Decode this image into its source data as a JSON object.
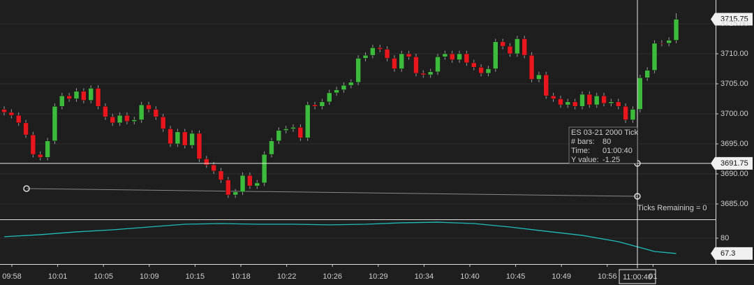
{
  "chart_data": {
    "type": "candlestick",
    "up_color": "#3dbb3d",
    "down_color": "#e8171d",
    "open": [
      3700.75,
      3700.25,
      3699.75,
      3698.5,
      3696.5,
      3693.25,
      3692.75,
      3695.5,
      3701.25,
      3703,
      3702.5,
      3703.75,
      3702.25,
      3704.25,
      3701.25,
      3699.5,
      3698.5,
      3699.75,
      3698.75,
      3699,
      3701.5,
      3700.75,
      3699.5,
      3697.5,
      3695,
      3697,
      3694.75,
      3696.75,
      3692.5,
      3691.5,
      3690.5,
      3689,
      3686.5,
      3687,
      3689.75,
      3688,
      3688.5,
      3693.25,
      3695.5,
      3697.25,
      3697.5,
      3697.75,
      3696,
      3701.5,
      3701.25,
      3702,
      3703.5,
      3704,
      3704.75,
      3705.25,
      3709.25,
      3709.75,
      3711,
      3710.75,
      3709.25,
      3707.5,
      3710,
      3709.5,
      3706.75,
      3706.5,
      3707,
      3709.5,
      3710,
      3709,
      3710,
      3708.5,
      3707.75,
      3706.75,
      3707.5,
      3712,
      3711.25,
      3710,
      3712.5,
      3709.75,
      3705.75,
      3706.5,
      3703,
      3702.5,
      3701.5,
      3702,
      3701.25,
      3703.25,
      3701.5,
      3703,
      3701.75,
      3702,
      3701.25,
      3699,
      3700.75,
      3706,
      3707.25,
      3711.75,
      3711.75,
      3712.25
    ],
    "high": [
      3701.25,
      3700.75,
      3700.25,
      3699,
      3697,
      3693.75,
      3696,
      3701.75,
      3703.5,
      3703.5,
      3704.25,
      3704.25,
      3704.75,
      3704.75,
      3701.75,
      3700,
      3700.25,
      3700.25,
      3699.5,
      3702,
      3702,
      3701.25,
      3700,
      3698,
      3697.5,
      3697.5,
      3697.25,
      3697.25,
      3693,
      3692,
      3691,
      3689.5,
      3687.5,
      3690.25,
      3690.25,
      3689,
      3693.75,
      3696,
      3697.75,
      3698,
      3698.25,
      3698.25,
      3702,
      3702,
      3702.5,
      3704,
      3704.5,
      3705.25,
      3705.75,
      3709.75,
      3710.25,
      3711.5,
      3711.5,
      3711.25,
      3709.75,
      3710.5,
      3710.5,
      3710,
      3707.25,
      3707.5,
      3710,
      3710.5,
      3710.5,
      3710.5,
      3710.5,
      3709,
      3708.25,
      3708,
      3712.5,
      3712.5,
      3711.75,
      3713,
      3713,
      3710.25,
      3707,
      3707,
      3703.5,
      3703,
      3702.5,
      3702.5,
      3703.75,
      3703.75,
      3703.5,
      3703.5,
      3702.5,
      3702.5,
      3701.75,
      3701.25,
      3706.5,
      3707.75,
      3712.25,
      3712.25,
      3712.75,
      3716.75
    ],
    "low": [
      3699.75,
      3699.25,
      3698,
      3696,
      3692.75,
      3692.25,
      3692.25,
      3695,
      3700.75,
      3702,
      3702,
      3701.75,
      3701.75,
      3700.75,
      3699,
      3698,
      3698,
      3698.25,
      3698.25,
      3698.5,
      3700.25,
      3699,
      3697,
      3694.5,
      3694.5,
      3694.25,
      3694.25,
      3692,
      3691,
      3690,
      3688.5,
      3686,
      3686,
      3686.5,
      3687.5,
      3687.5,
      3688,
      3692.75,
      3695,
      3696.75,
      3697,
      3695.5,
      3695.5,
      3700.75,
      3700.75,
      3701.5,
      3703,
      3703.5,
      3704.25,
      3704.75,
      3708.75,
      3709.25,
      3710.25,
      3708.75,
      3707,
      3707,
      3709,
      3706.25,
      3706,
      3706,
      3706.5,
      3709,
      3708.5,
      3708.5,
      3708,
      3707.25,
      3706.25,
      3706.25,
      3707,
      3710.75,
      3709.5,
      3709.5,
      3709.25,
      3705.25,
      3705.25,
      3702.5,
      3702,
      3701,
      3701,
      3700.75,
      3700.75,
      3701,
      3701,
      3701.25,
      3701.25,
      3700.75,
      3698.5,
      3698.5,
      3700.25,
      3705.5,
      3706.75,
      3711.25,
      3711.25,
      3711.75
    ],
    "close": [
      3700.25,
      3699.75,
      3698.5,
      3696.5,
      3693.25,
      3692.75,
      3695.5,
      3701.25,
      3703,
      3702.5,
      3703.75,
      3702.25,
      3704.25,
      3701.25,
      3699.5,
      3698.5,
      3699.75,
      3698.75,
      3699,
      3701.5,
      3700.75,
      3699.5,
      3697.5,
      3695,
      3697,
      3694.75,
      3696.75,
      3692.5,
      3691.5,
      3690.5,
      3689,
      3686.5,
      3687,
      3689.75,
      3688,
      3688.5,
      3693.25,
      3695.5,
      3697.25,
      3697.5,
      3697.75,
      3696,
      3701.5,
      3701.25,
      3702,
      3703.5,
      3704,
      3704.75,
      3705.25,
      3709.25,
      3709.75,
      3711,
      3710.75,
      3709.25,
      3707.5,
      3710,
      3709.5,
      3706.75,
      3706.5,
      3707,
      3709.5,
      3710,
      3709,
      3710,
      3708.5,
      3707.75,
      3706.75,
      3707.5,
      3712,
      3711.25,
      3710,
      3712.5,
      3709.75,
      3705.75,
      3706.5,
      3703,
      3702.5,
      3701.5,
      3702,
      3701.25,
      3703.25,
      3701.5,
      3703,
      3701.75,
      3702,
      3701.25,
      3699,
      3700.75,
      3706,
      3707.25,
      3711.75,
      3711.75,
      3712.25,
      3715.75
    ],
    "ylim": [
      3682.44,
      3718.95
    ],
    "yticks": [
      {
        "value": 3685,
        "label": "3685.00"
      },
      {
        "value": 3690,
        "label": "3690.00"
      },
      {
        "value": 3695,
        "label": "3695.00"
      },
      {
        "value": 3700,
        "label": "3700.00"
      },
      {
        "value": 3705,
        "label": "3705.00"
      },
      {
        "value": 3710,
        "label": "3710.00"
      },
      {
        "value": 3715,
        "label": "3715.00"
      }
    ],
    "last_price": {
      "value": 3715.75,
      "label": "3715.75"
    },
    "crosshair": {
      "price": {
        "value": 3691.75,
        "label": "3691.75"
      },
      "time": "11:00:40"
    },
    "time_labels": [
      "09:58",
      "10:01",
      "10:05",
      "10:09",
      "10:15",
      "10:18",
      "10:22",
      "10:26",
      "10:29",
      "10:34",
      "10:40",
      "10:45",
      "10:49",
      "10:56",
      "01"
    ],
    "info": {
      "title": "ES 03-21 2000 Tick",
      "bars_label": "# bars:",
      "bars": 80,
      "time_label": "Time:",
      "time": "01:00:40",
      "yvalue_label": "Y value:",
      "yvalue": -1.25
    },
    "annotation": "Ticks Remaining = 0",
    "indicator": {
      "color": "#1fbcbc",
      "x": [
        0,
        5,
        10,
        15,
        20,
        25,
        30,
        35,
        40,
        45,
        50,
        55,
        60,
        65,
        70,
        75,
        80,
        85,
        90,
        93
      ],
      "values": [
        81.2,
        82.9,
        85.2,
        86.9,
        89.2,
        91.5,
        92.1,
        91.5,
        91.5,
        91,
        91.5,
        92.7,
        93.2,
        92.1,
        89.2,
        85.7,
        82.3,
        77.1,
        69,
        67.3
      ],
      "ylim": [
        58.6,
        94.4
      ],
      "yticks": [
        80
      ],
      "last_label": 67.3
    }
  }
}
